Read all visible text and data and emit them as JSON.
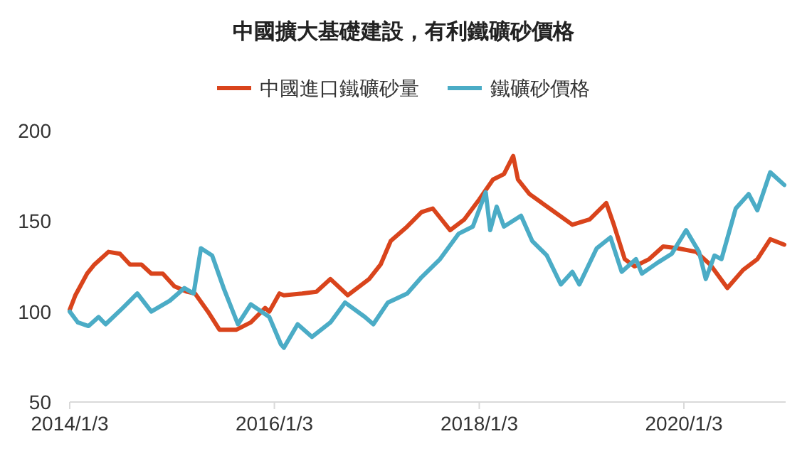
{
  "chart_data": {
    "type": "line",
    "title": "中國擴大基礎建設，有利鐵礦砂價格",
    "legend": "top",
    "grid": false,
    "marker": "none",
    "line_style": "solid",
    "xlim": [
      "2014-01-03",
      "2020-12-31"
    ],
    "ylim": [
      50,
      200
    ],
    "yticks": [
      50,
      100,
      150,
      200
    ],
    "xticks": [
      {
        "value": "2014-01-03",
        "label": "2014/1/3"
      },
      {
        "value": "2016-01-03",
        "label": "2016/1/3"
      },
      {
        "value": "2018-01-03",
        "label": "2018/1/3"
      },
      {
        "value": "2020-01-03",
        "label": "2020/1/3"
      }
    ],
    "series": [
      {
        "name": "中國進口鐵礦砂量",
        "color": "#d9441c",
        "x": [
          "2014-01-03",
          "2014-01-23",
          "2014-03-06",
          "2014-04-01",
          "2014-05-21",
          "2014-07-01",
          "2014-08-06",
          "2014-09-16",
          "2014-10-21",
          "2014-12-01",
          "2015-01-11",
          "2015-02-25",
          "2015-03-26",
          "2015-05-11",
          "2015-06-21",
          "2015-08-21",
          "2015-10-11",
          "2015-12-01",
          "2015-12-16",
          "2016-01-21",
          "2016-02-06",
          "2016-04-11",
          "2016-06-01",
          "2016-07-21",
          "2016-09-21",
          "2016-12-06",
          "2017-01-16",
          "2017-02-21",
          "2017-04-21",
          "2017-06-11",
          "2017-07-21",
          "2017-09-21",
          "2017-11-11",
          "2018-01-03",
          "2018-02-21",
          "2018-04-01",
          "2018-05-04",
          "2018-05-21",
          "2018-07-01",
          "2018-09-11",
          "2018-12-01",
          "2019-02-01",
          "2019-04-01",
          "2019-04-26",
          "2019-06-06",
          "2019-07-11",
          "2019-09-01",
          "2019-10-21",
          "2019-12-11",
          "2020-02-16",
          "2020-04-06",
          "2020-06-06",
          "2020-08-01",
          "2020-09-21",
          "2020-11-06",
          "2020-12-26"
        ],
        "values": [
          101,
          109,
          121,
          126,
          133,
          132,
          126,
          126,
          121,
          121,
          114,
          111,
          110,
          100,
          90,
          90,
          94,
          102,
          100,
          110,
          109,
          110,
          111,
          118,
          109,
          118,
          126,
          139,
          147,
          155,
          157,
          145,
          151,
          162,
          173,
          176,
          186,
          173,
          165,
          157,
          148,
          151,
          160,
          149,
          129,
          125,
          129,
          136,
          135,
          133,
          126,
          113,
          123,
          129,
          140,
          137
        ]
      },
      {
        "name": "鐵礦砂價格",
        "color": "#4bacc6",
        "x": [
          "2014-01-03",
          "2014-02-01",
          "2014-03-11",
          "2014-04-16",
          "2014-05-11",
          "2014-07-11",
          "2014-09-01",
          "2014-10-21",
          "2014-12-26",
          "2015-02-16",
          "2015-03-21",
          "2015-04-16",
          "2015-05-26",
          "2015-07-06",
          "2015-08-26",
          "2015-10-11",
          "2015-12-16",
          "2016-01-26",
          "2016-02-06",
          "2016-03-26",
          "2016-05-16",
          "2016-07-21",
          "2016-09-11",
          "2016-11-21",
          "2016-12-21",
          "2017-02-11",
          "2017-04-21",
          "2017-06-11",
          "2017-08-16",
          "2017-10-21",
          "2017-12-11",
          "2018-01-26",
          "2018-02-11",
          "2018-03-06",
          "2018-04-01",
          "2018-06-01",
          "2018-07-11",
          "2018-09-01",
          "2018-10-21",
          "2018-12-01",
          "2018-12-26",
          "2019-02-26",
          "2019-04-16",
          "2019-05-26",
          "2019-07-16",
          "2019-08-06",
          "2019-10-01",
          "2019-11-21",
          "2020-01-11",
          "2020-02-26",
          "2020-03-21",
          "2020-04-21",
          "2020-05-16",
          "2020-07-06",
          "2020-08-21",
          "2020-09-21",
          "2020-11-06",
          "2020-12-26"
        ],
        "values": [
          100,
          94,
          92,
          97,
          93,
          102,
          110,
          100,
          106,
          113,
          110,
          135,
          131,
          113,
          93,
          104,
          97,
          82,
          80,
          93,
          86,
          94,
          105,
          97,
          93,
          105,
          110,
          119,
          129,
          143,
          147,
          166,
          145,
          158,
          147,
          153,
          139,
          131,
          115,
          122,
          115,
          135,
          141,
          122,
          129,
          121,
          127,
          132,
          145,
          133,
          118,
          131,
          129,
          157,
          165,
          156,
          177,
          170
        ]
      }
    ]
  }
}
